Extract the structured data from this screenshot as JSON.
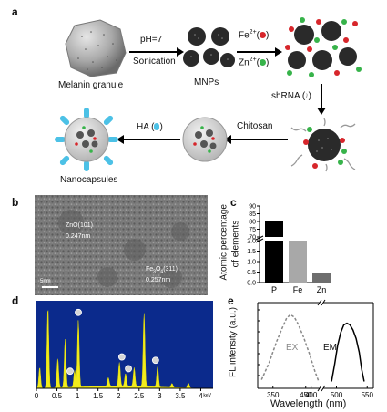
{
  "panel_a": {
    "label": "a",
    "melanin_label": "Melanin granule",
    "step1_top": "pH=7",
    "step1_bottom": "Sonication",
    "mnps_label": "MNPs",
    "fe_label": "Fe",
    "fe_sup": "2+",
    "zn_label": "Zn",
    "zn_sup": "2+",
    "shrna_label": "shRNA",
    "chitosan_label": "Chitosan",
    "ha_label": "HA",
    "nanocapsules_label": "Nanocapsules",
    "colors": {
      "fe": "#d7262b",
      "zn": "#37b34a",
      "ha": "#4cc1e6",
      "core": "#2a2a2a"
    }
  },
  "panel_b": {
    "label": "b",
    "zno_plane": "ZnO(101)",
    "zno_spacing": "0.247nm",
    "fe_plane_a": "Fe",
    "fe_plane_sub1": "3",
    "fe_plane_b": "O",
    "fe_plane_sub2": "4",
    "fe_plane_c": "(311)",
    "fe_spacing": "0.257nm",
    "scale": "5nm"
  },
  "panel_c": {
    "label": "c",
    "ylabel_line1": "Atomic percentage",
    "ylabel_line2": "of elements",
    "chart_data": {
      "type": "bar",
      "categories": [
        "P",
        "Fe",
        "Zn"
      ],
      "values": [
        80,
        2.0,
        0.45
      ],
      "colors": [
        "#000000",
        "#a8a8a8",
        "#6e6e6e"
      ],
      "broken_axis": true,
      "lower_ticks": [
        "0.0",
        "0.5",
        "1.0",
        "1.5",
        "2.0"
      ],
      "upper_ticks": [
        "70",
        "75",
        "80",
        "85",
        "90"
      ]
    }
  },
  "panel_d": {
    "label": "d",
    "xunit": "keV",
    "chart_data": {
      "type": "line",
      "xlim": [
        0,
        4.3
      ],
      "xticks": [
        "0",
        "0.5",
        "1",
        "1.5",
        "2",
        "2.5",
        "3",
        "3.5",
        "4"
      ],
      "peaks": [
        {
          "x": 0.08,
          "h": 0.25
        },
        {
          "x": 0.28,
          "h": 0.97
        },
        {
          "x": 0.52,
          "h": 0.35
        },
        {
          "x": 0.7,
          "h": 0.58
        },
        {
          "x": 0.93,
          "h": 0.2
        },
        {
          "x": 1.02,
          "h": 0.8
        },
        {
          "x": 1.75,
          "h": 0.1
        },
        {
          "x": 2.02,
          "h": 0.28
        },
        {
          "x": 2.17,
          "h": 0.15
        },
        {
          "x": 2.38,
          "h": 0.22
        },
        {
          "x": 2.62,
          "h": 0.88
        },
        {
          "x": 2.95,
          "h": 0.25
        },
        {
          "x": 3.3,
          "h": 0.05
        },
        {
          "x": 3.7,
          "h": 0.06
        }
      ],
      "markers": [
        {
          "x": 0.82,
          "h": 0.15
        },
        {
          "x": 1.02,
          "h": 0.85
        },
        {
          "x": 2.08,
          "h": 0.32
        },
        {
          "x": 2.24,
          "h": 0.18
        },
        {
          "x": 2.9,
          "h": 0.28
        }
      ],
      "fill_color": "#f2ec1d"
    }
  },
  "panel_e": {
    "label": "e",
    "ylabel": "FL intensity (a.u.)",
    "xlabel": "Wavelength (nm)",
    "ex_label": "EX",
    "em_label": "EM",
    "chart_data": {
      "type": "line",
      "xticks": [
        "350",
        "400",
        "450",
        "500",
        "550"
      ],
      "broken_axis": true,
      "series": [
        {
          "name": "EX",
          "style": "dashed",
          "points": [
            [
              335,
              0.1
            ],
            [
              345,
              0.3
            ],
            [
              355,
              0.55
            ],
            [
              362,
              0.7
            ],
            [
              368,
              0.82
            ],
            [
              373,
              0.86
            ],
            [
              378,
              0.83
            ],
            [
              383,
              0.75
            ],
            [
              390,
              0.6
            ],
            [
              398,
              0.4
            ],
            [
              405,
              0.2
            ],
            [
              410,
              0.08
            ]
          ]
        },
        {
          "name": "EM",
          "style": "solid",
          "points": [
            [
              492,
              0.08
            ],
            [
              497,
              0.28
            ],
            [
              502,
              0.5
            ],
            [
              507,
              0.65
            ],
            [
              512,
              0.74
            ],
            [
              517,
              0.76
            ],
            [
              522,
              0.74
            ],
            [
              527,
              0.68
            ],
            [
              532,
              0.58
            ],
            [
              537,
              0.42
            ],
            [
              541,
              0.22
            ],
            [
              545,
              0.08
            ]
          ]
        }
      ]
    }
  }
}
